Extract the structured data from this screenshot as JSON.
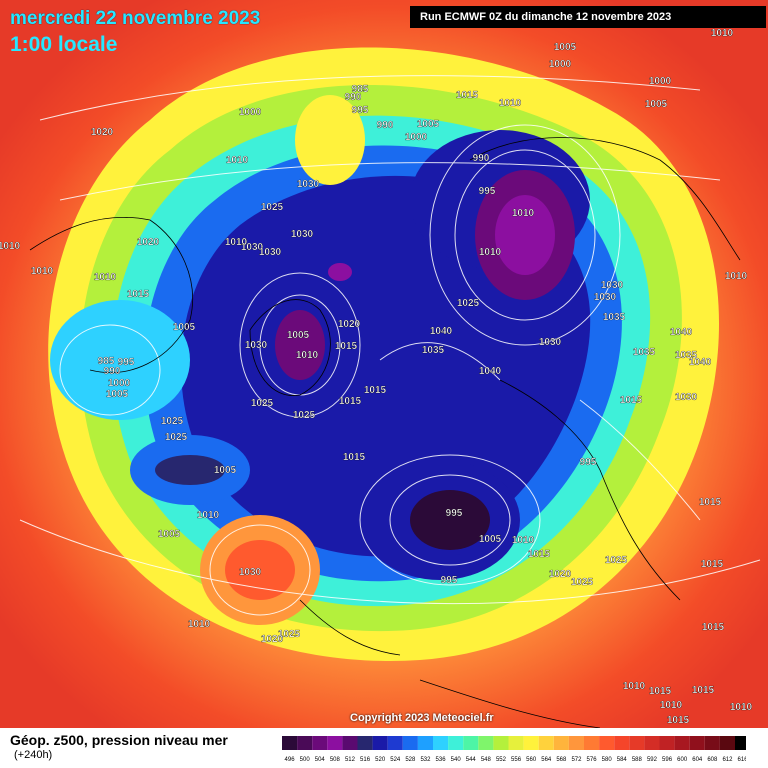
{
  "header": {
    "date": "mercredi 22 novembre 2023",
    "local_time": "1:00 locale",
    "run_info": "Run ECMWF 0Z du dimanche 12 novembre 2023"
  },
  "copyright": "Copyright 2023 Meteociel.fr",
  "footer": {
    "field": "Géop. z500, pression niveau mer",
    "lead": "(+240h)"
  },
  "legend": {
    "labels": [
      "496",
      "500",
      "504",
      "508",
      "512",
      "516",
      "520",
      "524",
      "528",
      "532",
      "536",
      "540",
      "544",
      "548",
      "552",
      "556",
      "560",
      "564",
      "568",
      "572",
      "576",
      "580",
      "584",
      "588",
      "592",
      "596",
      "600",
      "604",
      "608",
      "612",
      "616"
    ],
    "colors": [
      "#2b0a38",
      "#4a0a57",
      "#6b0a7a",
      "#8c0fa0",
      "#5a0a70",
      "#27276f",
      "#1a1aa8",
      "#1e3ad1",
      "#1a6bf0",
      "#1ea0ff",
      "#2ed1ff",
      "#3ef0d9",
      "#4df5a6",
      "#7ff56b",
      "#b4f03c",
      "#e6f03c",
      "#fff23c",
      "#ffd23c",
      "#ffb43c",
      "#ff963c",
      "#ff7a33",
      "#ff5a2e",
      "#f5452a",
      "#e63a28",
      "#d42d26",
      "#c02224",
      "#a81820",
      "#90101c",
      "#780c18",
      "#5a0810",
      "#000000"
    ]
  },
  "pressure_labels": [
    "1005",
    "1000",
    "990",
    "1030",
    "1020",
    "1015",
    "1010",
    "1025",
    "1035",
    "1040",
    "995",
    "985"
  ],
  "colors": {
    "title": "#27e7ff",
    "ocean_warm": "#f34c28"
  }
}
